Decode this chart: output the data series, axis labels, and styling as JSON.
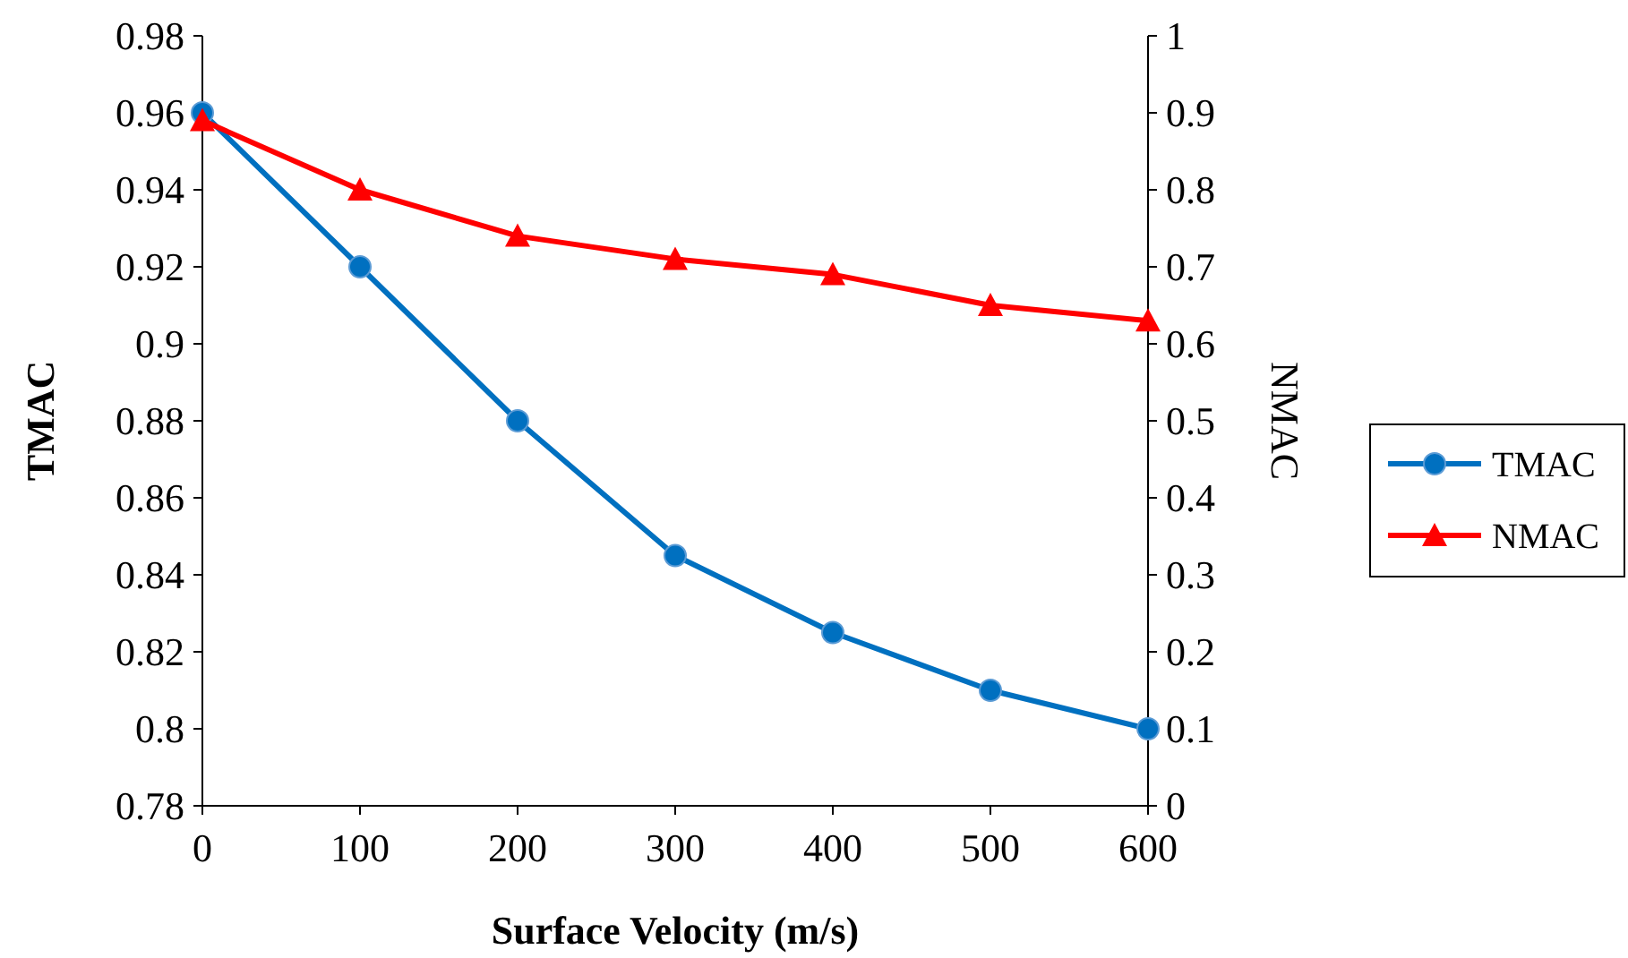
{
  "chart_data": {
    "type": "line",
    "xlabel": "Surface Velocity (m/s)",
    "ylabel": "TMAC",
    "y2label": "NMAC",
    "x": [
      0,
      100,
      200,
      300,
      400,
      500,
      600
    ],
    "xlim": [
      0,
      600
    ],
    "xticks": [
      0,
      100,
      200,
      300,
      400,
      500,
      600
    ],
    "ylim": [
      0.78,
      0.98
    ],
    "yticks": [
      0.78,
      0.8,
      0.82,
      0.84,
      0.86,
      0.88,
      0.9,
      0.92,
      0.94,
      0.96,
      0.98
    ],
    "y2lim": [
      0,
      1
    ],
    "y2ticks": [
      0,
      0.1,
      0.2,
      0.3,
      0.4,
      0.5,
      0.6,
      0.7,
      0.8,
      0.9,
      1
    ],
    "grid": false,
    "legend": "right",
    "series": [
      {
        "name": "TMAC",
        "color": "#0070c0",
        "marker": "circle",
        "values": [
          0.96,
          0.92,
          0.88,
          0.845,
          0.825,
          0.81,
          0.8
        ]
      },
      {
        "name": "NMAC",
        "color": "#ff0000",
        "marker": "triangle",
        "axis": "y2",
        "values": [
          0.89,
          0.8,
          0.74,
          0.71,
          0.69,
          0.65,
          0.63
        ]
      }
    ]
  }
}
